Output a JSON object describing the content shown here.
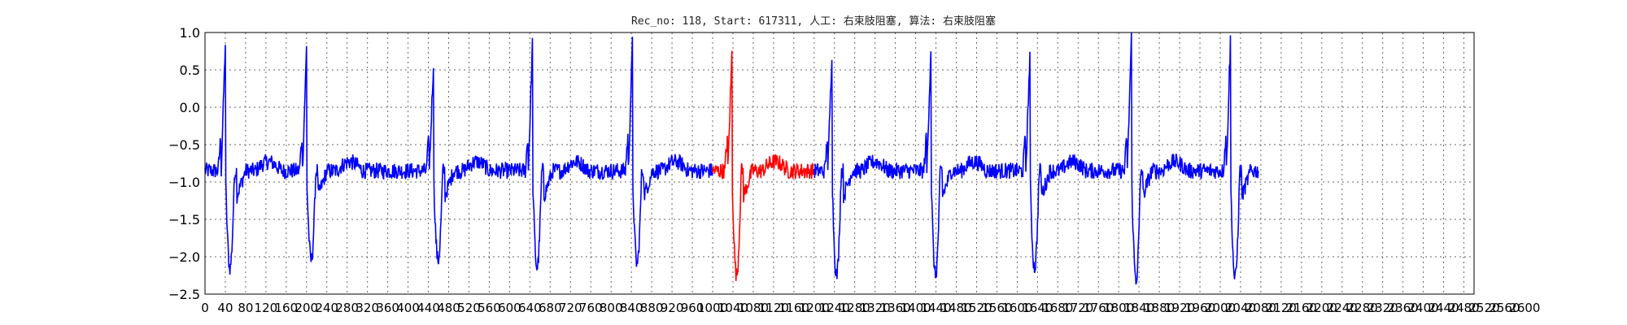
{
  "chart_data": {
    "type": "line",
    "title": "Rec_no: 118, Start: 617311, 人工: 右束肢阻塞, 算法: 右束肢阻塞",
    "xlabel": "",
    "ylabel": "",
    "xlim": [
      0,
      2500
    ],
    "ylim": [
      -2.5,
      1.0
    ],
    "yticks": [
      "1.0",
      "0.5",
      "0.0",
      "−0.5",
      "−1.0",
      "−1.5",
      "−2.0",
      "−2.5"
    ],
    "yticks_values": [
      1.0,
      0.5,
      0.0,
      -0.5,
      -1.0,
      -1.5,
      -2.0,
      -2.5
    ],
    "xticks": [
      "0",
      "40",
      "80",
      "120",
      "160",
      "200",
      "240",
      "280",
      "320",
      "360",
      "400",
      "440",
      "480",
      "520",
      "560",
      "600",
      "640",
      "680",
      "720",
      "760",
      "800",
      "840",
      "880",
      "920",
      "960",
      "1000",
      "1040",
      "1080",
      "1120",
      "1160",
      "1200",
      "1240",
      "1280",
      "1320",
      "1360",
      "1400",
      "1440",
      "1480",
      "1520",
      "1560",
      "1600",
      "1640",
      "1680",
      "1720",
      "1760",
      "1800",
      "1840",
      "1880",
      "1920",
      "1960",
      "2000",
      "2040",
      "2080",
      "2120",
      "2160",
      "2200",
      "2240",
      "2280",
      "2320",
      "2360",
      "2400",
      "2440",
      "2480",
      "2520",
      "2560",
      "2600"
    ],
    "grid": true,
    "x_step": 1,
    "red_range": [
      1000,
      1200
    ],
    "beats": [
      {
        "x": 40,
        "peak": 0.85,
        "trough": -2.15
      },
      {
        "x": 200,
        "peak": 0.8,
        "trough": -2.05
      },
      {
        "x": 450,
        "peak": 0.6,
        "trough": -2.05
      },
      {
        "x": 645,
        "peak": 0.85,
        "trough": -2.15
      },
      {
        "x": 842,
        "peak": 0.85,
        "trough": -2.1
      },
      {
        "x": 1038,
        "peak": 0.72,
        "trough": -2.25
      },
      {
        "x": 1235,
        "peak": 0.73,
        "trough": -2.25
      },
      {
        "x": 1430,
        "peak": 0.8,
        "trough": -2.25
      },
      {
        "x": 1625,
        "peak": 0.72,
        "trough": -2.15
      },
      {
        "x": 1825,
        "peak": 0.97,
        "trough": -2.3
      },
      {
        "x": 2020,
        "peak": 0.9,
        "trough": -2.3
      }
    ],
    "baseline": -0.85,
    "series": [
      {
        "color": "#0000ff"
      },
      {
        "color": "#ff0000"
      }
    ]
  }
}
